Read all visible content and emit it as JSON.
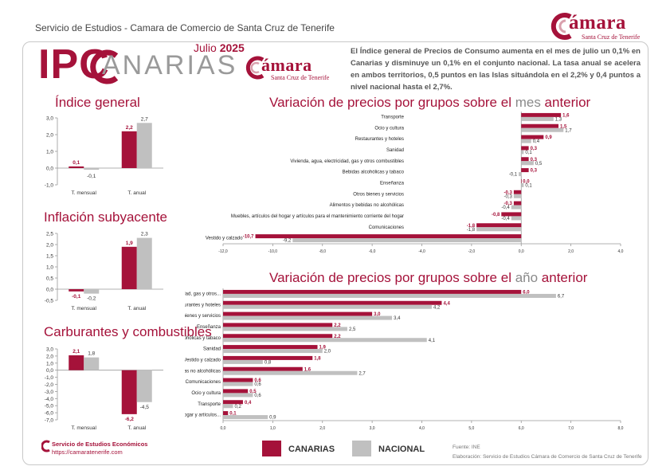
{
  "header": {
    "service_text": "Servicio de Estudios - Camara de Comercio de Santa Cruz de Tenerife",
    "logo_word": "ámara",
    "logo_sub": "Santa Cruz de Tenerife"
  },
  "title": {
    "ipc": "IPC",
    "canarias": "ANARIAS",
    "month": "Julio",
    "year": "2025"
  },
  "intro_text": "El Índice general de Precios de Consumo aumenta en el mes de julio un 0,1% en Canarias y disminuye un 0,1% en el conjunto nacional. La tasa anual se acelera en ambos territorios, 0,5 puntos en las Islas situándola en el 2,2% y 0,4 puntos a nivel nacional hasta el 2,7%.",
  "colors": {
    "canarias": "#a5123a",
    "nacional": "#c0c0c0",
    "brand": "#a5123a"
  },
  "legend": {
    "canarias": "CANARIAS",
    "nacional": "NACIONAL"
  },
  "source": "Fuente: INE",
  "elaboration": "Elaboración: Servicio de Estudios Cámara de Comercio de Santa Cruz de Tenerife",
  "footer": {
    "name": "Servicio de Estudios Económicos",
    "url": "https://camaratenerife.com"
  },
  "chart_data": [
    {
      "id": "indice",
      "type": "bar",
      "title": "Índice general",
      "categories": [
        "T. mensual",
        "T. anual"
      ],
      "series": [
        {
          "name": "CANARIAS",
          "values": [
            0.1,
            2.2
          ]
        },
        {
          "name": "NACIONAL",
          "values": [
            -0.1,
            2.7
          ]
        }
      ],
      "labels": [
        [
          "0,1",
          "2,2"
        ],
        [
          "-0,1",
          "2,7"
        ]
      ],
      "ylim": [
        -1.0,
        3.0
      ],
      "yticks": [
        -1.0,
        0.0,
        1.0,
        2.0,
        3.0
      ],
      "ytick_labels": [
        "-1,0",
        "0,0",
        "1,0",
        "2,0",
        "3,0"
      ]
    },
    {
      "id": "subyacente",
      "type": "bar",
      "title": "Inflación subyacente",
      "categories": [
        "T. mensual",
        "T. anual"
      ],
      "series": [
        {
          "name": "CANARIAS",
          "values": [
            -0.1,
            1.9
          ]
        },
        {
          "name": "NACIONAL",
          "values": [
            -0.2,
            2.3
          ]
        }
      ],
      "labels": [
        [
          "-0,1",
          "1,9"
        ],
        [
          "-0,2",
          "2,3"
        ]
      ],
      "ylim": [
        -0.5,
        2.5
      ],
      "yticks": [
        -0.5,
        0.0,
        0.5,
        1.0,
        1.5,
        2.0,
        2.5
      ],
      "ytick_labels": [
        "-0,5",
        "0,0",
        "0,5",
        "1,0",
        "1,5",
        "2,0",
        "2,5"
      ]
    },
    {
      "id": "carburantes",
      "type": "bar",
      "title": "Carburantes y combustibles",
      "categories": [
        "T. mensual",
        "T. anual"
      ],
      "series": [
        {
          "name": "CANARIAS",
          "values": [
            2.1,
            -6.2
          ]
        },
        {
          "name": "NACIONAL",
          "values": [
            1.8,
            -4.5
          ]
        }
      ],
      "labels": [
        [
          "2,1",
          "-6,2"
        ],
        [
          "1,8",
          "-4,5"
        ]
      ],
      "ylim": [
        -7.0,
        3.0
      ],
      "yticks": [
        -7,
        -6,
        -5,
        -4,
        -3,
        -2,
        -1,
        0,
        1,
        2,
        3
      ],
      "ytick_labels": [
        "-7,0",
        "-6,0",
        "-5,0",
        "-4,0",
        "-3,0",
        "-2,0",
        "-1,0",
        "0,0",
        "1,0",
        "2,0",
        "3,0"
      ]
    },
    {
      "id": "mensual",
      "type": "bar",
      "orientation": "horizontal",
      "title_parts": [
        "Variación de precios por grupos sobre el ",
        "mes",
        " anterior"
      ],
      "categories": [
        "Transporte",
        "Ocio y cultura",
        "Restaurantes y hoteles",
        "Sanidad",
        "Vivienda, agua, electricidad, gas y otros combustibles",
        "Bebidas alcohólicas y tabaco",
        "Enseñanza",
        "Otros bienes y servicios",
        "Alimentos y bebidas no alcohólicas",
        "Muebles, artículos del hogar y artículos para el mantenimiento corriente del hogar",
        "Comunicaciones",
        "Vestido y calzado"
      ],
      "series": [
        {
          "name": "CANARIAS",
          "values": [
            1.6,
            1.5,
            0.9,
            0.3,
            0.3,
            0.3,
            0.0,
            -0.3,
            -0.3,
            -0.8,
            -1.8,
            -10.7
          ]
        },
        {
          "name": "NACIONAL",
          "values": [
            1.3,
            1.7,
            0.4,
            0.1,
            0.5,
            -0.1,
            0.1,
            -0.3,
            -0.4,
            -0.4,
            -1.8,
            -9.2
          ]
        }
      ],
      "labels": [
        [
          "1,6",
          "1,5",
          "0,9",
          "0,3",
          "0,3",
          "0,3",
          "0,0",
          "-0,3",
          "-0,3",
          "-0,8",
          "-1,8",
          "-10,7"
        ],
        [
          "1,3",
          "1,7",
          "0,4",
          "0,1",
          "0,5",
          "-0,1",
          "0,1",
          "-0,3",
          "-0,4",
          "-0,4",
          "-1,8",
          "-9,2"
        ]
      ],
      "xlim": [
        -12.0,
        4.0
      ],
      "xticks": [
        -12,
        -10,
        -8,
        -6,
        -4,
        -2,
        0,
        2,
        4
      ],
      "xtick_labels": [
        "-12,0",
        "-10,0",
        "-8,0",
        "-6,0",
        "-4,0",
        "-2,0",
        "0,0",
        "2,0",
        "4,0"
      ]
    },
    {
      "id": "anual",
      "type": "bar",
      "orientation": "horizontal",
      "title_parts": [
        "Variación de precios por grupos sobre el ",
        "año",
        " anterior"
      ],
      "categories": [
        "Vivienda, agua, electricidad, gas y otros...",
        "Restaurantes y hoteles",
        "Otros bienes y servicios",
        "Enseñanza",
        "Bebidas alcohólicas y tabaco",
        "Sanidad",
        "Vestido y calzado",
        "Alimentos y bebidas no alcohólicas",
        "Comunicaciones",
        "Ocio y cultura",
        "Transporte",
        "Muebles, artículos del hogar y artículos..."
      ],
      "series": [
        {
          "name": "CANARIAS",
          "values": [
            6.0,
            4.4,
            3.0,
            2.2,
            2.2,
            1.9,
            1.8,
            1.6,
            0.6,
            0.5,
            0.4,
            0.1
          ]
        },
        {
          "name": "NACIONAL",
          "values": [
            6.7,
            4.2,
            3.4,
            2.5,
            4.1,
            2.0,
            0.8,
            2.7,
            0.6,
            0.6,
            0.2,
            0.9
          ]
        }
      ],
      "labels": [
        [
          "6,0",
          "4,4",
          "3,0",
          "2,2",
          "2,2",
          "1,9",
          "1,8",
          "1,6",
          "0,6",
          "0,5",
          "0,4",
          "0,1"
        ],
        [
          "6,7",
          "4,2",
          "3,4",
          "2,5",
          "4,1",
          "2,0",
          "0,8",
          "2,7",
          "0,6",
          "0,6",
          "0,2",
          "0,9"
        ]
      ],
      "xlim": [
        0.0,
        8.0
      ],
      "xticks": [
        0,
        1,
        2,
        3,
        4,
        5,
        6,
        7,
        8
      ],
      "xtick_labels": [
        "0,0",
        "1,0",
        "2,0",
        "3,0",
        "4,0",
        "5,0",
        "6,0",
        "7,0",
        "8,0"
      ]
    }
  ]
}
